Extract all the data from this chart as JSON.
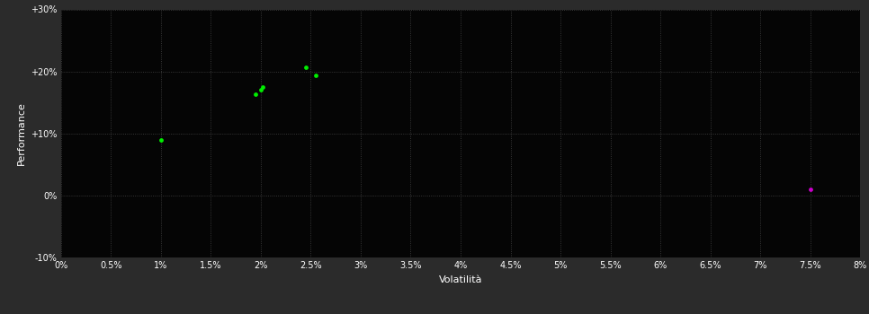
{
  "background_color": "#2b2b2b",
  "plot_bg_color": "#050505",
  "grid_color": "#444444",
  "text_color": "#ffffff",
  "xlabel": "Volatilità",
  "ylabel": "Performance",
  "xlim": [
    0.0,
    0.08
  ],
  "ylim": [
    -0.1,
    0.3
  ],
  "xticks": [
    0.0,
    0.005,
    0.01,
    0.015,
    0.02,
    0.025,
    0.03,
    0.035,
    0.04,
    0.045,
    0.05,
    0.055,
    0.06,
    0.065,
    0.07,
    0.075,
    0.08
  ],
  "yticks": [
    -0.1,
    0.0,
    0.1,
    0.2,
    0.3
  ],
  "green_points": [
    [
      0.01,
      0.09
    ],
    [
      0.0195,
      0.163
    ],
    [
      0.02,
      0.17
    ],
    [
      0.0202,
      0.175
    ],
    [
      0.0245,
      0.207
    ],
    [
      0.0255,
      0.193
    ]
  ],
  "magenta_points": [
    [
      0.075,
      0.01
    ]
  ],
  "green_color": "#00ee00",
  "magenta_color": "#cc00cc",
  "marker_size": 12
}
